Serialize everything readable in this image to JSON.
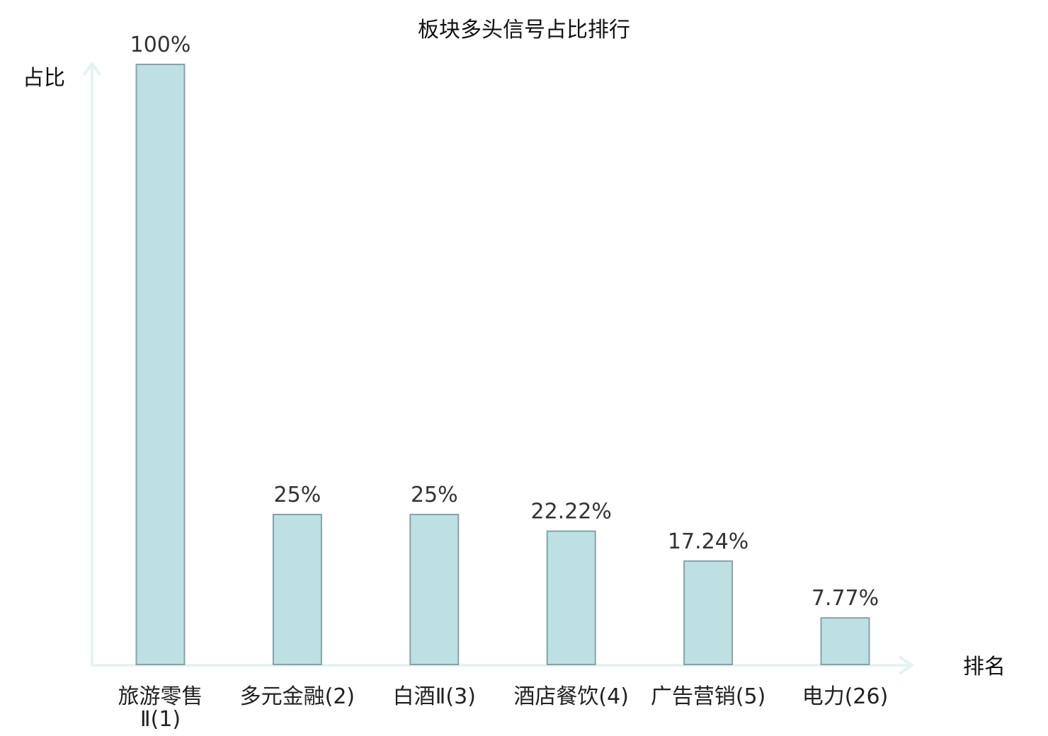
{
  "chart_data": {
    "type": "bar",
    "title": "板块多头信号占比排行",
    "xlabel": "排名",
    "ylabel": "占比",
    "ylim": [
      0,
      100
    ],
    "grid": false,
    "categories": [
      "旅游零售Ⅱ(1)",
      "多元金融(2)",
      "白酒Ⅱ(3)",
      "酒店餐饮(4)",
      "广告营销(5)",
      "电力(26)"
    ],
    "category_lines": [
      [
        "旅游零售",
        "Ⅱ(1)"
      ],
      [
        "多元金融(2)"
      ],
      [
        "白酒Ⅱ(3)"
      ],
      [
        "酒店餐饮(4)"
      ],
      [
        "广告营销(5)"
      ],
      [
        "电力(26)"
      ]
    ],
    "values": [
      100,
      25,
      25,
      22.22,
      17.24,
      7.77
    ],
    "value_labels": [
      "100%",
      "25%",
      "25%",
      "22.22%",
      "17.24%",
      "7.77%"
    ],
    "highlight_index": 5,
    "colors": {
      "bar_fill": "#bde0e3",
      "bar_stroke": "#87a3a6",
      "axis": "#e3f3f1",
      "highlight_text": "#e8141b",
      "text": "#222222"
    }
  }
}
